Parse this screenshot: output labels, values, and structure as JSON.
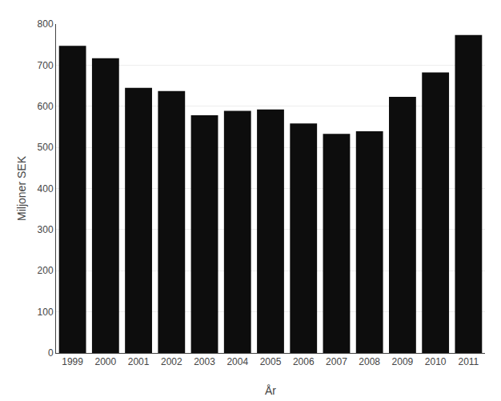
{
  "chart_data": {
    "type": "bar",
    "xlabel": "År",
    "ylabel": "Miljoner SEK",
    "categories": [
      "1999",
      "2000",
      "2001",
      "2002",
      "2003",
      "2004",
      "2005",
      "2006",
      "2007",
      "2008",
      "2009",
      "2010",
      "2011"
    ],
    "values": [
      747,
      717,
      645,
      637,
      578,
      589,
      592,
      558,
      533,
      539,
      623,
      682,
      773
    ],
    "color": "#0d0d0d",
    "ylim": [
      0,
      800
    ],
    "yticks": [
      0,
      100,
      200,
      300,
      400,
      500,
      600,
      700,
      800
    ],
    "grid": true
  }
}
